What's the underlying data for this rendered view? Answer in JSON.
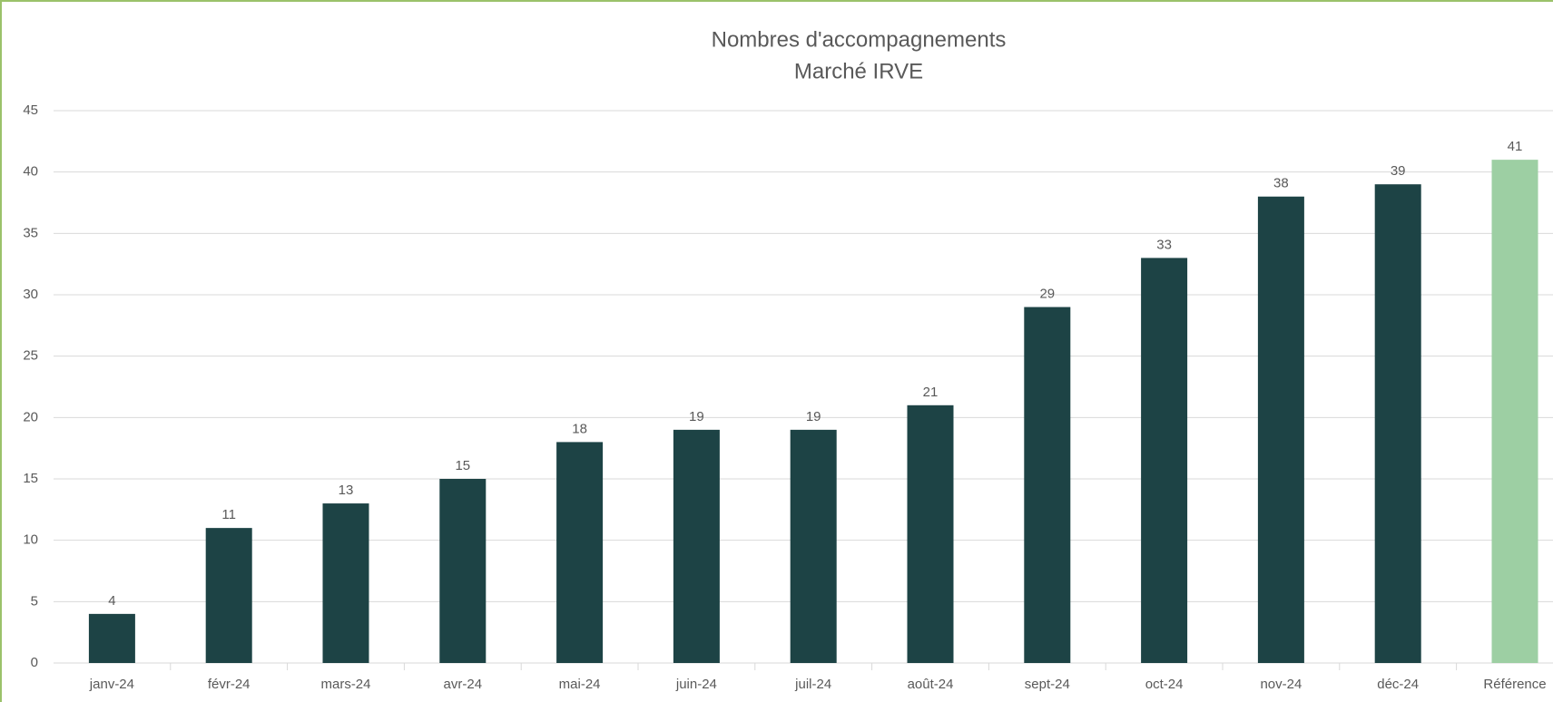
{
  "chart_data": {
    "type": "bar",
    "title": "Nombres d'accompagnements",
    "subtitle": "Marché IRVE",
    "categories": [
      "janv-24",
      "févr-24",
      "mars-24",
      "avr-24",
      "mai-24",
      "juin-24",
      "juil-24",
      "août-24",
      "sept-24",
      "oct-24",
      "nov-24",
      "déc-24",
      "Référence"
    ],
    "values": [
      4,
      11,
      13,
      15,
      18,
      19,
      19,
      21,
      29,
      33,
      38,
      39,
      41
    ],
    "colors": [
      "#1d4345",
      "#1d4345",
      "#1d4345",
      "#1d4345",
      "#1d4345",
      "#1d4345",
      "#1d4345",
      "#1d4345",
      "#1d4345",
      "#1d4345",
      "#1d4345",
      "#1d4345",
      "#9dcfa3"
    ],
    "ylim": [
      0,
      45
    ],
    "yticks": [
      0,
      5,
      10,
      15,
      20,
      25,
      30,
      35,
      40,
      45
    ],
    "grid": true
  }
}
